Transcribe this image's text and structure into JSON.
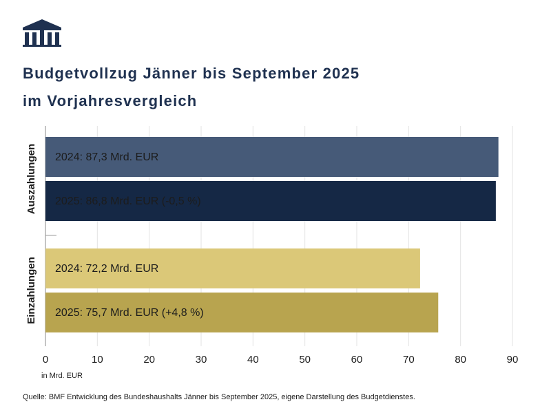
{
  "chart_data": {
    "type": "bar",
    "orientation": "horizontal",
    "title": [
      "Budgetvollzug Jänner bis September 2025",
      "im Vorjahresvergleich"
    ],
    "categories": [
      "Auszahlungen",
      "Einzahlungen"
    ],
    "series": [
      {
        "colors": [
          "#465a78",
          "#dbc878"
        ],
        "label_colors": [
          "#ffffff",
          "#1c1c1c"
        ],
        "values": [
          87.3,
          72.2
        ],
        "value_labels": [
          "2024: 87,3 Mrd. EUR",
          "2024: 72,2 Mrd. EUR"
        ]
      },
      {
        "colors": [
          "#152845",
          "#b8a44f"
        ],
        "label_colors": [
          "#ffffff",
          "#1c1c1c"
        ],
        "values": [
          86.8,
          75.7
        ],
        "value_labels": [
          "2025: 86,8 Mrd. EUR (-0,5 %)",
          "2025: 75,7 Mrd. EUR (+4,8 %)"
        ]
      }
    ],
    "xlim": [
      0,
      90
    ],
    "xticks": [
      0,
      10,
      20,
      30,
      40,
      50,
      60,
      70,
      80,
      90
    ],
    "grid": true,
    "x_axis_label": "in Mrd. EUR",
    "source": "Quelle: BMF Entwicklung des Bundeshaushalts Jänner bis September 2025, eigene Darstellung des Budgetdienstes."
  }
}
